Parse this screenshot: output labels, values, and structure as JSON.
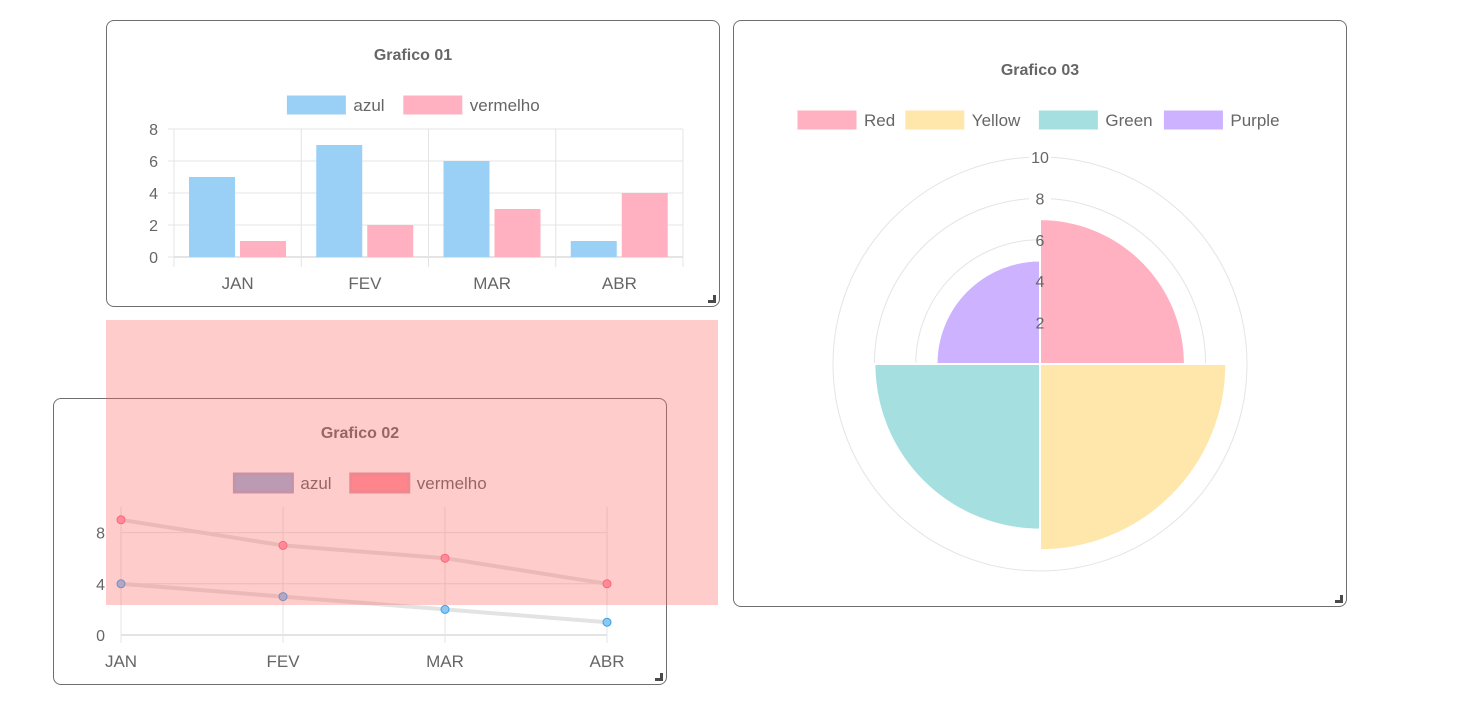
{
  "chart_data": [
    {
      "type": "bar",
      "title": "Grafico 01",
      "categories": [
        "JAN",
        "FEV",
        "MAR",
        "ABR"
      ],
      "series": [
        {
          "name": "azul",
          "values": [
            5,
            7,
            6,
            1
          ],
          "color": "#9ad0f5",
          "border": "#36a2eb"
        },
        {
          "name": "vermelho",
          "values": [
            1,
            2,
            3,
            4
          ],
          "color": "#ffb1c1",
          "border": "#ff6384"
        }
      ],
      "yticks": [
        0,
        2,
        4,
        6,
        8
      ],
      "ylim": [
        0,
        8
      ],
      "grid": true,
      "legend": "top"
    },
    {
      "type": "line",
      "title": "Grafico 02",
      "categories": [
        "JAN",
        "FEV",
        "MAR",
        "ABR"
      ],
      "series": [
        {
          "name": "azul",
          "values": [
            4,
            3,
            2,
            1
          ],
          "color": "#36a2eb"
        },
        {
          "name": "vermelho",
          "values": [
            9,
            7,
            6,
            4
          ],
          "color": "#ff6384"
        }
      ],
      "yticks": [
        0,
        4,
        8
      ],
      "ylim": [
        0,
        10
      ],
      "grid": true,
      "legend": "top"
    },
    {
      "type": "polarArea",
      "title": "Grafico 03",
      "categories": [
        "Red",
        "Yellow",
        "Green",
        "Purple"
      ],
      "values": [
        7,
        9,
        8,
        5
      ],
      "colors": [
        "#ffb1c1",
        "#ffe6aa",
        "#a5dfdf",
        "#ccb2ff"
      ],
      "rticks": [
        2,
        4,
        6,
        8,
        10
      ],
      "rlim": [
        0,
        10
      ],
      "legend": "top"
    }
  ]
}
